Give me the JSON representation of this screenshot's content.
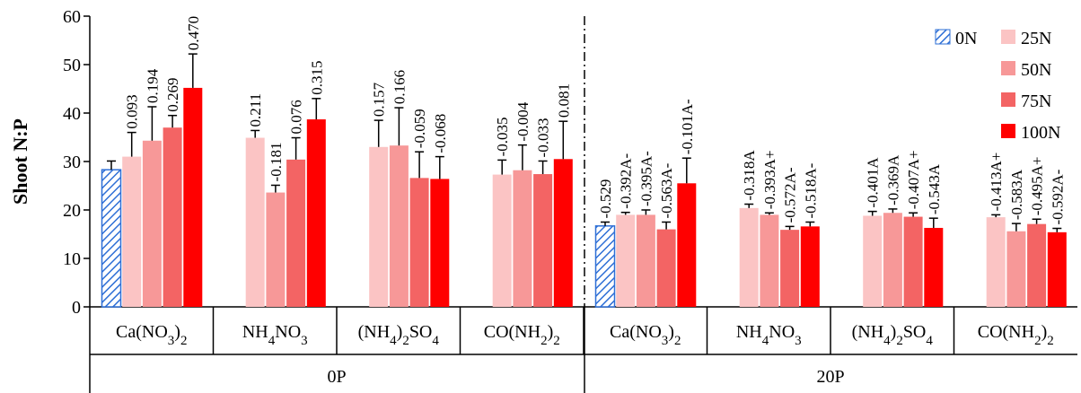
{
  "chart_data": {
    "type": "bar",
    "y_label": "Shoot N:P",
    "groups": [
      "0P",
      "20P"
    ],
    "categories": [
      "Ca(NO3)2",
      "NH4NO3",
      "(NH4)2SO4",
      "CO(NH2)2",
      "Ca(NO3)2",
      "NH4NO3",
      "(NH4)2SO4",
      "CO(NH2)2"
    ],
    "ylim": [
      0,
      60
    ],
    "yticks": [
      0,
      10,
      20,
      30,
      40,
      50,
      60
    ],
    "series": [
      {
        "name": "0N",
        "color": "#2e6fd6",
        "hatch": true,
        "values": [
          28.3,
          null,
          null,
          null,
          16.7,
          null,
          null,
          null
        ],
        "errors": [
          1.8,
          null,
          null,
          null,
          0.8,
          null,
          null,
          null
        ],
        "labels": [
          null,
          null,
          null,
          null,
          "-0.529",
          null,
          null,
          null
        ]
      },
      {
        "name": "25N",
        "color": "#fbc4c4",
        "values": [
          31.0,
          34.9,
          33.0,
          27.3,
          19.0,
          20.4,
          18.8,
          18.5
        ],
        "errors": [
          5.0,
          1.5,
          5.5,
          3.0,
          0.5,
          0.8,
          0.9,
          0.5
        ],
        "labels": [
          "0.093",
          "0.211",
          "0.157",
          "-0.035",
          "-0.392A-",
          "-0.318A",
          "-0.401A",
          "-0.413A+"
        ]
      },
      {
        "name": "50N",
        "color": "#f79898",
        "values": [
          34.3,
          23.6,
          33.3,
          28.2,
          19.0,
          19.0,
          19.4,
          15.6
        ],
        "errors": [
          7.0,
          1.5,
          7.8,
          5.2,
          1.0,
          0.4,
          0.8,
          1.6
        ],
        "labels": [
          "0.194",
          "-0.181",
          "0.166",
          "-0.004",
          "-0.395A-",
          "-0.393A+",
          "-0.369A",
          "-0.583A"
        ]
      },
      {
        "name": "75N",
        "color": "#f36464",
        "values": [
          37.0,
          30.4,
          26.6,
          27.4,
          16.0,
          15.9,
          18.6,
          17.1
        ],
        "errors": [
          2.5,
          4.5,
          5.4,
          2.7,
          1.5,
          0.7,
          0.8,
          1.0
        ],
        "labels": [
          "0.269",
          "0.076",
          "-0.059",
          "-0.033",
          "-0.563A-",
          "-0.572A-",
          "-0.407A+",
          "-0.495A+"
        ]
      },
      {
        "name": "100N",
        "color": "#ff0000",
        "values": [
          45.2,
          38.7,
          26.4,
          30.5,
          25.5,
          16.6,
          16.3,
          15.4
        ],
        "errors": [
          7.0,
          4.3,
          4.6,
          7.8,
          5.2,
          0.9,
          2.0,
          0.8
        ],
        "labels": [
          "0.470",
          "0.315",
          "-0.068",
          "0.081",
          "-0.101A-",
          "-0.518A-",
          "-0.543A",
          "-0.592A-"
        ]
      }
    ]
  }
}
